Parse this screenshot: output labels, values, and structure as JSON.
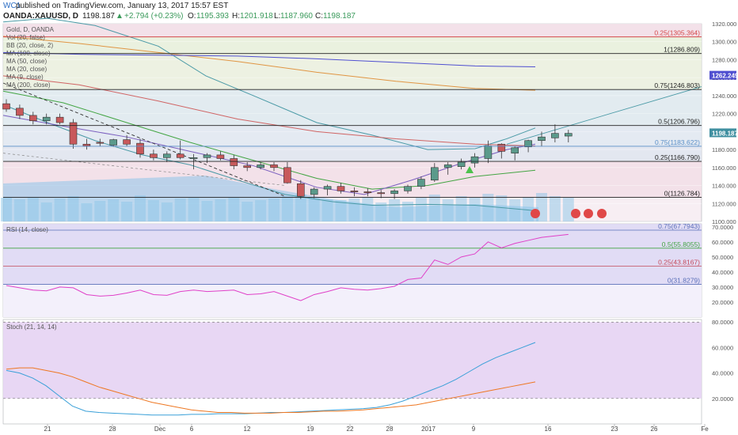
{
  "header": {
    "author": "WC1",
    "published": "published on TradingView.com, January 13, 2017 15:57 EST",
    "symbol": "OANDA:XAUUSD, D",
    "last": "1198.187",
    "change": "+2.794 (+0.23%)",
    "open_label": "O:",
    "open": "1195.393",
    "high_label": "H:",
    "high": "1201.918",
    "low_label": "L:",
    "low": "1187.960",
    "close_label": "C:",
    "close": "1198.187"
  },
  "indicators": [
    "Gold, D, OANDA",
    "Vol (20, false)",
    "BB (20, close, 2)",
    "MA (100, close)",
    "MA (50, close)",
    "MA (20, close)",
    "MA (9, close)",
    "MA (200, close)"
  ],
  "rsi_label": "RSI (14, close)",
  "stoch_label": "Stoch (21, 14, 14)",
  "price_badge": "1198.187",
  "ma_badge": "1262.249",
  "colors": {
    "up_candle": "#5b9a8b",
    "down_candle": "#c8595b",
    "bb": "#4a9aa6",
    "ma100": "#d06464",
    "ma50": "#4f4fd0",
    "ma20": "#43a543",
    "ma9": "#7b5fbf",
    "ma200": "#e09543",
    "rsi": "#e040c8",
    "stoch_k": "#3aa0d8",
    "stoch_d": "#ee7722",
    "volume": "#7fc1e6"
  },
  "chart_data": [
    {
      "type": "candlestick",
      "title": "Gold, D, OANDA",
      "x": [
        "21",
        "28",
        "Dec",
        "6",
        "12",
        "19",
        "22",
        "28",
        "2017",
        "9",
        "16",
        "23",
        "26",
        "Fe"
      ],
      "ylim": [
        1100,
        1320
      ],
      "yticks": [
        "1320.000",
        "1300.000",
        "1280.000",
        "1260.000",
        "1240.000",
        "1220.000",
        "1200.000",
        "1180.000",
        "1160.000",
        "1140.000",
        "1120.000",
        "1100.000"
      ],
      "series": [
        {
          "name": "price",
          "candles": [
            {
              "o": 1231,
              "h": 1236,
              "l": 1222,
              "c": 1225
            },
            {
              "o": 1226,
              "h": 1230,
              "l": 1214,
              "c": 1218
            },
            {
              "o": 1218,
              "h": 1222,
              "l": 1208,
              "c": 1212
            },
            {
              "o": 1212,
              "h": 1220,
              "l": 1208,
              "c": 1216
            },
            {
              "o": 1216,
              "h": 1220,
              "l": 1208,
              "c": 1210
            },
            {
              "o": 1210,
              "h": 1214,
              "l": 1181,
              "c": 1186
            },
            {
              "o": 1186,
              "h": 1192,
              "l": 1180,
              "c": 1184
            },
            {
              "o": 1188,
              "h": 1192,
              "l": 1184,
              "c": 1187
            },
            {
              "o": 1185,
              "h": 1192,
              "l": 1183,
              "c": 1191
            },
            {
              "o": 1191,
              "h": 1196,
              "l": 1184,
              "c": 1186
            },
            {
              "o": 1187,
              "h": 1192,
              "l": 1171,
              "c": 1175
            },
            {
              "o": 1175,
              "h": 1180,
              "l": 1168,
              "c": 1171
            },
            {
              "o": 1171,
              "h": 1178,
              "l": 1166,
              "c": 1175
            },
            {
              "o": 1175,
              "h": 1190,
              "l": 1169,
              "c": 1171
            },
            {
              "o": 1170,
              "h": 1175,
              "l": 1158,
              "c": 1171
            },
            {
              "o": 1171,
              "h": 1176,
              "l": 1165,
              "c": 1174
            },
            {
              "o": 1174,
              "h": 1178,
              "l": 1168,
              "c": 1170
            },
            {
              "o": 1170,
              "h": 1174,
              "l": 1158,
              "c": 1162
            },
            {
              "o": 1162,
              "h": 1166,
              "l": 1156,
              "c": 1160
            },
            {
              "o": 1160,
              "h": 1166,
              "l": 1158,
              "c": 1163
            },
            {
              "o": 1163,
              "h": 1166,
              "l": 1156,
              "c": 1160
            },
            {
              "o": 1160,
              "h": 1166,
              "l": 1142,
              "c": 1143
            },
            {
              "o": 1142,
              "h": 1146,
              "l": 1125,
              "c": 1128
            },
            {
              "o": 1130,
              "h": 1138,
              "l": 1126,
              "c": 1136
            },
            {
              "o": 1136,
              "h": 1141,
              "l": 1129,
              "c": 1139
            },
            {
              "o": 1139,
              "h": 1143,
              "l": 1131,
              "c": 1134
            },
            {
              "o": 1134,
              "h": 1138,
              "l": 1128,
              "c": 1133
            },
            {
              "o": 1133,
              "h": 1137,
              "l": 1128,
              "c": 1132
            },
            {
              "o": 1132,
              "h": 1135,
              "l": 1126,
              "c": 1131
            },
            {
              "o": 1131,
              "h": 1136,
              "l": 1125,
              "c": 1134
            },
            {
              "o": 1134,
              "h": 1141,
              "l": 1131,
              "c": 1139
            },
            {
              "o": 1139,
              "h": 1150,
              "l": 1136,
              "c": 1147
            },
            {
              "o": 1146,
              "h": 1165,
              "l": 1144,
              "c": 1160
            },
            {
              "o": 1160,
              "h": 1166,
              "l": 1152,
              "c": 1163
            },
            {
              "o": 1161,
              "h": 1170,
              "l": 1158,
              "c": 1166
            },
            {
              "o": 1165,
              "h": 1176,
              "l": 1160,
              "c": 1172
            },
            {
              "o": 1170,
              "h": 1190,
              "l": 1165,
              "c": 1184
            },
            {
              "o": 1186,
              "h": 1187,
              "l": 1170,
              "c": 1178
            },
            {
              "o": 1176,
              "h": 1184,
              "l": 1168,
              "c": 1182
            },
            {
              "o": 1183,
              "h": 1191,
              "l": 1177,
              "c": 1190
            },
            {
              "o": 1190,
              "h": 1200,
              "l": 1184,
              "c": 1194
            },
            {
              "o": 1193,
              "h": 1208,
              "l": 1188,
              "c": 1198
            },
            {
              "o": 1195,
              "h": 1202,
              "l": 1188,
              "c": 1198
            }
          ]
        }
      ],
      "fib_levels": [
        {
          "label": "0.25(1305.364)",
          "value": 1305.364
        },
        {
          "label": "1(1286.809)",
          "value": 1286.809
        },
        {
          "label": "0.75(1246.803)",
          "value": 1246.803
        },
        {
          "label": "0.5(1206.796)",
          "value": 1206.796
        },
        {
          "label": "0.75(1183.622)",
          "value": 1183.622
        },
        {
          "label": "0.25(1166.790)",
          "value": 1166.79
        },
        {
          "label": "0(1126.784)",
          "value": 1126.784
        }
      ]
    },
    {
      "type": "line",
      "title": "RSI (14, close)",
      "ylim": [
        10,
        72
      ],
      "yticks": [
        "70.0000",
        "60.0000",
        "50.0000",
        "40.0000",
        "30.0000",
        "20.0000"
      ],
      "levels": [
        {
          "label": "0.75(67.7943)",
          "value": 67.7943
        },
        {
          "label": "0.5(55.8055)",
          "value": 55.8055
        },
        {
          "label": "0.25(43.8167)",
          "value": 43.8167
        },
        {
          "label": "0(31.8279)",
          "value": 31.8279
        }
      ],
      "series": [
        {
          "name": "RSI",
          "values": [
            31,
            29.5,
            28,
            27.5,
            30,
            29.5,
            25,
            24,
            24.5,
            26,
            28,
            25,
            24.5,
            27,
            28,
            27,
            27.5,
            28,
            25,
            25.5,
            27,
            24,
            21,
            25,
            27,
            29.5,
            28.5,
            28,
            29,
            30.5,
            35,
            36,
            48,
            45,
            50,
            52,
            60,
            56,
            59,
            61,
            63,
            64,
            65
          ]
        }
      ]
    },
    {
      "type": "line",
      "title": "Stoch (21, 14, 14)",
      "ylim": [
        0,
        82
      ],
      "yticks": [
        "80.0000",
        "60.0000",
        "40.0000",
        "20.0000"
      ],
      "series": [
        {
          "name": "K",
          "values": [
            42,
            40,
            36,
            30,
            22,
            14,
            10,
            9,
            8.5,
            8,
            7.5,
            7,
            7,
            7,
            7.5,
            7.5,
            8,
            8,
            8,
            8.5,
            9,
            9,
            9.5,
            10,
            10.5,
            11,
            11.5,
            12,
            13,
            15,
            18,
            22,
            26,
            30,
            35,
            41,
            47,
            52,
            56,
            60,
            64
          ]
        },
        {
          "name": "D",
          "values": [
            43,
            44,
            44,
            42,
            40,
            37,
            33,
            29,
            26,
            23,
            20,
            17,
            15,
            13,
            11,
            10,
            9,
            9,
            8.5,
            8.5,
            8.5,
            9,
            9,
            9.5,
            10,
            10,
            10.5,
            11,
            12,
            13,
            14,
            15,
            17,
            19,
            21,
            23,
            25,
            27,
            29,
            31,
            33
          ]
        }
      ]
    }
  ]
}
